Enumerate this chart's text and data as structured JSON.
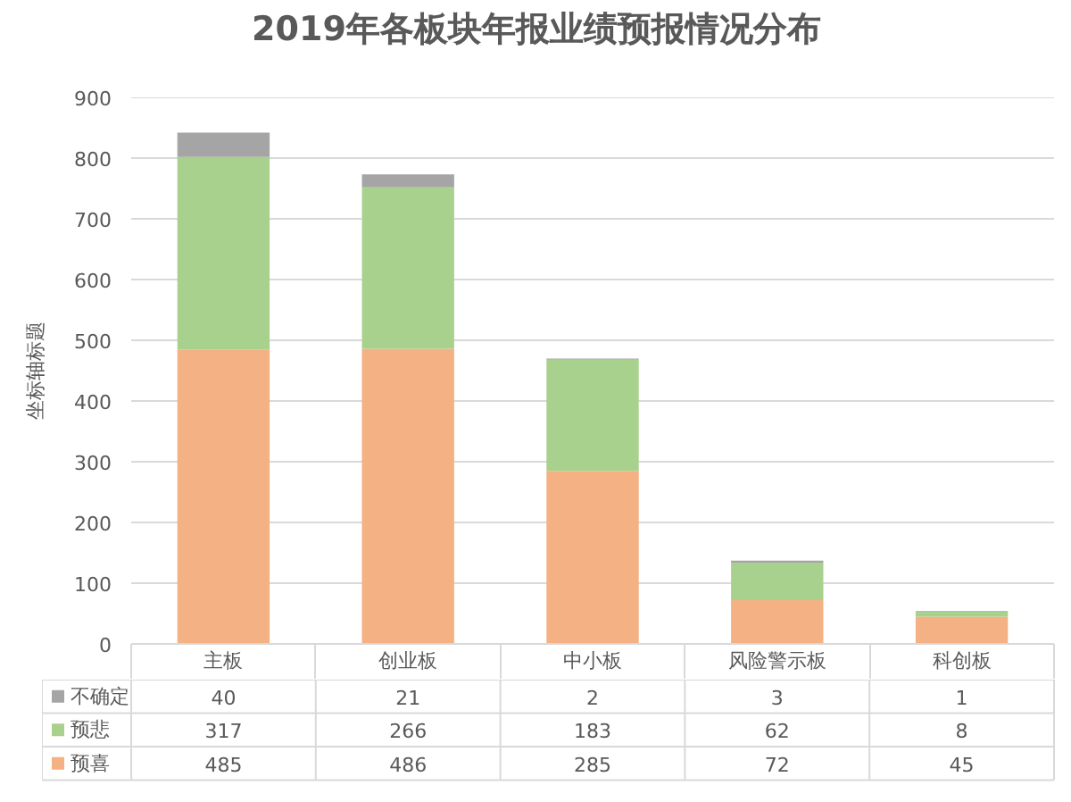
{
  "chart_data": {
    "type": "bar",
    "title": "2019年各板块年报业绩预报情况分布",
    "ylabel": "坐标轴标题",
    "categories": [
      "主板",
      "创业板",
      "中小板",
      "风险警示板",
      "科创板"
    ],
    "stacked": true,
    "series": [
      {
        "name": "预喜",
        "color": "#f4b183",
        "values": [
          485,
          486,
          285,
          72,
          45
        ]
      },
      {
        "name": "预悲",
        "color": "#a9d18e",
        "values": [
          317,
          266,
          183,
          62,
          8
        ]
      },
      {
        "name": "不确定",
        "color": "#a5a5a5",
        "values": [
          40,
          21,
          2,
          3,
          1
        ]
      }
    ],
    "ylim": [
      0,
      900
    ],
    "yticks": [
      0,
      100,
      200,
      300,
      400,
      500,
      600,
      700,
      800,
      900
    ],
    "grid": "y",
    "legend": "bottom",
    "data_labels": true
  }
}
